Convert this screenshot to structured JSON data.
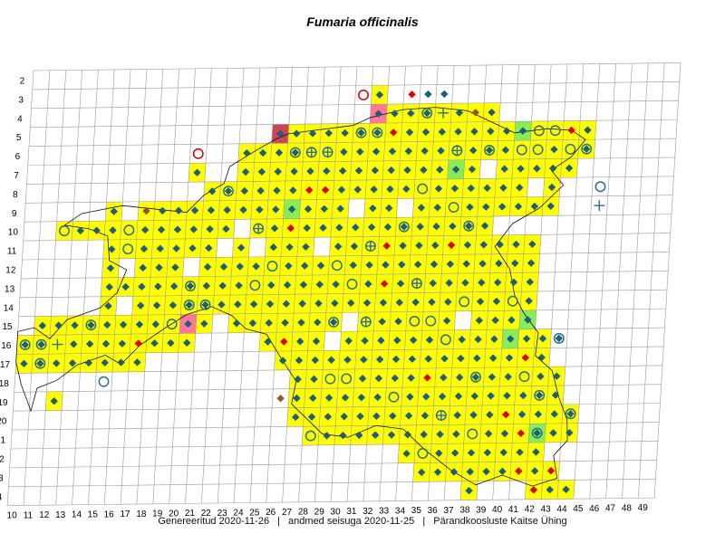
{
  "title": "Fumaria officinalis",
  "footer": {
    "generated": "Genereeritud 2020-11-26",
    "data_state": "andmed seisuga 2020-11-25",
    "organization": "Pärandkoosluste Kaitse Ühing",
    "separator": "|"
  },
  "grid": {
    "columns": [
      10,
      11,
      12,
      13,
      14,
      15,
      16,
      17,
      18,
      19,
      20,
      21,
      22,
      23,
      24,
      25,
      26,
      27,
      28,
      29,
      30,
      31,
      32,
      33,
      34,
      35,
      36,
      37,
      38,
      39,
      40,
      41,
      42,
      43,
      44,
      45,
      46,
      47,
      48,
      49
    ],
    "rows": [
      2,
      3,
      4,
      5,
      6,
      7,
      8,
      9,
      10,
      11,
      12,
      13,
      14,
      15,
      16,
      17,
      18,
      19,
      20,
      21,
      22,
      23,
      24
    ]
  },
  "colors": {
    "cell_fill": "#ffff00",
    "cell_fill_green": "#88ee55",
    "cell_fill_pink": "#ff7799",
    "cell_fill_darkred": "#cc4455",
    "grid_line": "#999999",
    "diamond": "#1d5f7a",
    "diamond_red": "#dd0000",
    "diamond_brown": "#8b5a2b",
    "circle": "#2a6f8a",
    "circle_red": "#cc0000"
  },
  "legend_symbols": [
    "diamond-icon",
    "circle-icon",
    "diamond-in-circle-icon",
    "cross-circle-icon",
    "cross-icon"
  ],
  "map_data": {
    "row_spans": [
      {
        "row": 3,
        "cols": [
          [
            31,
            31
          ]
        ]
      },
      {
        "row": 4,
        "cols": [
          [
            31,
            38
          ]
        ]
      },
      {
        "row": 5,
        "cols": [
          [
            25,
            39
          ],
          [
            40,
            44
          ]
        ]
      },
      {
        "row": 6,
        "cols": [
          [
            23,
            44
          ]
        ]
      },
      {
        "row": 7,
        "cols": [
          [
            20,
            20
          ],
          [
            23,
            37
          ],
          [
            39,
            43
          ]
        ]
      },
      {
        "row": 8,
        "cols": [
          [
            21,
            38
          ],
          [
            39,
            43
          ]
        ]
      },
      {
        "row": 9,
        "cols": [
          [
            15,
            42
          ]
        ]
      },
      {
        "row": 10,
        "cols": [
          [
            12,
            38
          ]
        ]
      },
      {
        "row": 11,
        "cols": [
          [
            15,
            37
          ],
          [
            38,
            41
          ]
        ]
      },
      {
        "row": 12,
        "cols": [
          [
            15,
            41
          ]
        ]
      },
      {
        "row": 13,
        "cols": [
          [
            15,
            41
          ]
        ]
      },
      {
        "row": 14,
        "cols": [
          [
            15,
            41
          ]
        ]
      },
      {
        "row": 15,
        "cols": [
          [
            11,
            19
          ],
          [
            21,
            41
          ]
        ]
      },
      {
        "row": 16,
        "cols": [
          [
            10,
            20
          ],
          [
            25,
            42
          ]
        ]
      },
      {
        "row": 17,
        "cols": [
          [
            10,
            17
          ],
          [
            26,
            42
          ]
        ]
      },
      {
        "row": 18,
        "cols": [
          [
            27,
            43
          ]
        ]
      },
      {
        "row": 19,
        "cols": [
          [
            12,
            12
          ],
          [
            27,
            43
          ]
        ]
      },
      {
        "row": 20,
        "cols": [
          [
            27,
            44
          ]
        ]
      },
      {
        "row": 21,
        "cols": [
          [
            28,
            44
          ]
        ]
      },
      {
        "row": 22,
        "cols": [
          [
            34,
            42
          ]
        ]
      },
      {
        "row": 23,
        "cols": [
          [
            35,
            43
          ]
        ]
      },
      {
        "row": 24,
        "cols": [
          [
            38,
            38
          ],
          [
            42,
            44
          ]
        ]
      }
    ],
    "special_cells": [
      {
        "col": 25,
        "row": 5,
        "fill": "darkred"
      },
      {
        "col": 31,
        "row": 4,
        "fill": "pink"
      },
      {
        "col": 20,
        "row": 15,
        "fill": "pink"
      },
      {
        "col": 36,
        "row": 7,
        "fill": "green"
      },
      {
        "col": 26,
        "row": 9,
        "fill": "green"
      },
      {
        "col": 24,
        "row": 11,
        "fill": "green"
      },
      {
        "col": 40,
        "row": 5,
        "fill": "green"
      },
      {
        "col": 41,
        "row": 15,
        "fill": "green"
      },
      {
        "col": 40,
        "row": 16,
        "fill": "green"
      },
      {
        "col": 42,
        "row": 21,
        "fill": "green"
      }
    ],
    "markers": [
      {
        "col": 30,
        "row": 3,
        "symbol": "circle-red"
      },
      {
        "col": 33,
        "row": 3,
        "symbol": "diamond-red"
      },
      {
        "col": 34,
        "row": 3,
        "symbol": "diamond"
      },
      {
        "col": 35,
        "row": 3,
        "symbol": "diamond"
      },
      {
        "col": 35,
        "row": 4,
        "symbol": "cross"
      },
      {
        "col": 37,
        "row": 4,
        "symbol": "diamond-brown"
      },
      {
        "col": 20,
        "row": 6,
        "symbol": "circle-red"
      },
      {
        "col": 45,
        "row": 8,
        "symbol": "circle"
      },
      {
        "col": 45,
        "row": 9,
        "symbol": "cross"
      },
      {
        "col": 32,
        "row": 5,
        "symbol": "diamond-red"
      },
      {
        "col": 43,
        "row": 5,
        "symbol": "diamond-red"
      },
      {
        "col": 27,
        "row": 8,
        "symbol": "diamond-red"
      },
      {
        "col": 28,
        "row": 8,
        "symbol": "diamond-red"
      },
      {
        "col": 26,
        "row": 10,
        "symbol": "diamond-red"
      },
      {
        "col": 37,
        "row": 10,
        "symbol": "diamond-red"
      },
      {
        "col": 32,
        "row": 11,
        "symbol": "diamond-red"
      },
      {
        "col": 36,
        "row": 11,
        "symbol": "diamond-red"
      },
      {
        "col": 32,
        "row": 13,
        "symbol": "diamond-red"
      },
      {
        "col": 17,
        "row": 16,
        "symbol": "diamond-red"
      },
      {
        "col": 26,
        "row": 16,
        "symbol": "diamond-red"
      },
      {
        "col": 35,
        "row": 18,
        "symbol": "diamond-red"
      },
      {
        "col": 41,
        "row": 17,
        "symbol": "diamond-red"
      },
      {
        "col": 40,
        "row": 20,
        "symbol": "diamond-red"
      },
      {
        "col": 41,
        "row": 21,
        "symbol": "diamond-red"
      },
      {
        "col": 41,
        "row": 23,
        "symbol": "diamond-red"
      },
      {
        "col": 43,
        "row": 23,
        "symbol": "diamond-red"
      },
      {
        "col": 42,
        "row": 24,
        "symbol": "diamond-red"
      },
      {
        "col": 17,
        "row": 9,
        "symbol": "diamond-brown"
      },
      {
        "col": 26,
        "row": 19,
        "symbol": "diamond-brown"
      },
      {
        "col": 22,
        "row": 8,
        "symbol": "diamond-in-circle"
      },
      {
        "col": 26,
        "row": 6,
        "symbol": "diamond-in-circle"
      },
      {
        "col": 27,
        "row": 6,
        "symbol": "cross-circle"
      },
      {
        "col": 28,
        "row": 6,
        "symbol": "cross-circle"
      },
      {
        "col": 30,
        "row": 5,
        "symbol": "diamond-in-circle"
      },
      {
        "col": 31,
        "row": 5,
        "symbol": "diamond-in-circle"
      },
      {
        "col": 34,
        "row": 4,
        "symbol": "diamond-in-circle"
      },
      {
        "col": 36,
        "row": 6,
        "symbol": "cross-circle"
      },
      {
        "col": 38,
        "row": 6,
        "symbol": "diamond-in-circle"
      },
      {
        "col": 44,
        "row": 6,
        "symbol": "diamond-in-circle"
      },
      {
        "col": 24,
        "row": 10,
        "symbol": "cross-circle"
      },
      {
        "col": 33,
        "row": 10,
        "symbol": "diamond-in-circle"
      },
      {
        "col": 37,
        "row": 10,
        "symbol": "diamond-in-circle"
      },
      {
        "col": 31,
        "row": 11,
        "symbol": "cross-circle"
      },
      {
        "col": 20,
        "row": 13,
        "symbol": "diamond-in-circle"
      },
      {
        "col": 34,
        "row": 13,
        "symbol": "cross-circle"
      },
      {
        "col": 20,
        "row": 14,
        "symbol": "diamond-in-circle"
      },
      {
        "col": 21,
        "row": 14,
        "symbol": "diamond-in-circle"
      },
      {
        "col": 14,
        "row": 15,
        "symbol": "diamond-in-circle"
      },
      {
        "col": 31,
        "row": 15,
        "symbol": "cross-circle"
      },
      {
        "col": 29,
        "row": 15,
        "symbol": "diamond-in-circle"
      },
      {
        "col": 10,
        "row": 16,
        "symbol": "diamond-in-circle"
      },
      {
        "col": 11,
        "row": 16,
        "symbol": "diamond-in-circle"
      },
      {
        "col": 43,
        "row": 16,
        "symbol": "diamond-in-circle"
      },
      {
        "col": 11,
        "row": 17,
        "symbol": "diamond-in-circle"
      },
      {
        "col": 38,
        "row": 18,
        "symbol": "diamond-in-circle"
      },
      {
        "col": 42,
        "row": 19,
        "symbol": "diamond-in-circle"
      },
      {
        "col": 36,
        "row": 20,
        "symbol": "cross-circle"
      },
      {
        "col": 44,
        "row": 20,
        "symbol": "diamond-in-circle"
      },
      {
        "col": 42,
        "row": 21,
        "symbol": "diamond-in-circle"
      },
      {
        "col": 15,
        "row": 18,
        "symbol": "circle"
      },
      {
        "col": 12,
        "row": 16,
        "symbol": "cross"
      }
    ],
    "open_circle_cells": [
      [
        41,
        5
      ],
      [
        42,
        5
      ],
      [
        43,
        6
      ],
      [
        40,
        6
      ],
      [
        41,
        6
      ],
      [
        16,
        10
      ],
      [
        16,
        11
      ],
      [
        25,
        12
      ],
      [
        29,
        12
      ],
      [
        30,
        13
      ],
      [
        37,
        14
      ],
      [
        40,
        14
      ],
      [
        19,
        15
      ],
      [
        34,
        15
      ],
      [
        35,
        15
      ],
      [
        36,
        16
      ],
      [
        29,
        18
      ],
      [
        30,
        18
      ],
      [
        33,
        19
      ],
      [
        38,
        21
      ],
      [
        35,
        22
      ],
      [
        28,
        21
      ],
      [
        41,
        18
      ],
      [
        44,
        18
      ],
      [
        24,
        13
      ],
      [
        34,
        8
      ],
      [
        36,
        9
      ],
      [
        12,
        10
      ]
    ],
    "blank_cells": [
      [
        16,
        9
      ],
      [
        16,
        12
      ],
      [
        16,
        14
      ],
      [
        20,
        12
      ],
      [
        22,
        11
      ],
      [
        23,
        10
      ],
      [
        24,
        11
      ],
      [
        22,
        15
      ],
      [
        28,
        11
      ],
      [
        41,
        8
      ],
      [
        43,
        8
      ],
      [
        44,
        9
      ],
      [
        30,
        15
      ],
      [
        29,
        16
      ],
      [
        37,
        15
      ],
      [
        25,
        19
      ],
      [
        26,
        20
      ],
      [
        33,
        9
      ],
      [
        30,
        9
      ]
    ]
  }
}
